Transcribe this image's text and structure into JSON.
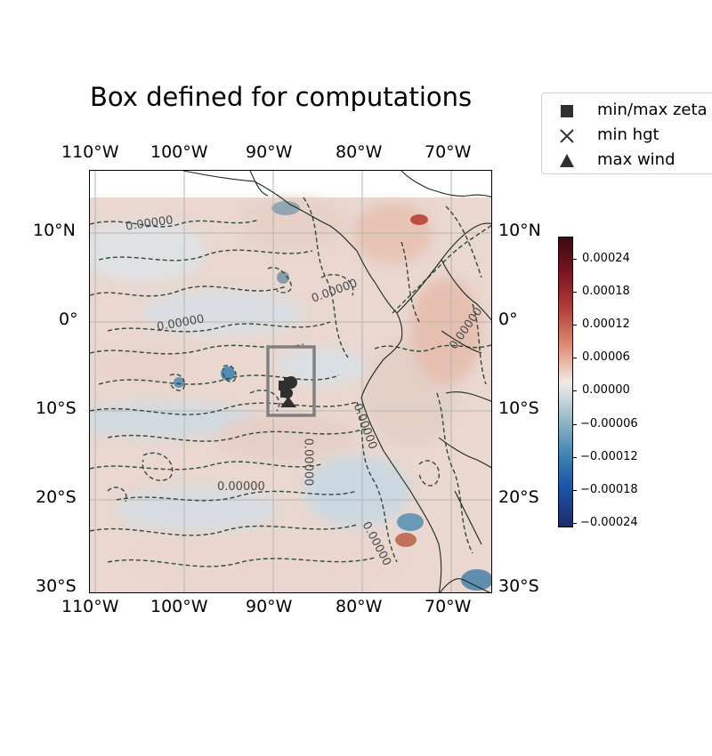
{
  "title": "Box defined for computations",
  "axes": {
    "top_lon_labels": [
      "110°W",
      "100°W",
      "90°W",
      "80°W",
      "70°W"
    ],
    "bottom_lon_labels": [
      "110°W",
      "100°W",
      "90°W",
      "80°W",
      "70°W"
    ],
    "left_lat_labels": [
      "10°N",
      "0°",
      "10°S",
      "20°S",
      "30°S"
    ],
    "right_lat_labels": [
      "10°N",
      "0°",
      "10°S",
      "20°S",
      "30°S"
    ]
  },
  "legend": [
    {
      "marker": "square-marker",
      "label": "min/max zeta"
    },
    {
      "marker": "x-marker",
      "label": "min hgt"
    },
    {
      "marker": "triangle-marker",
      "label": "max wind"
    }
  ],
  "colorbar": {
    "ticks": [
      "0.00024",
      "0.00018",
      "0.00012",
      "0.00006",
      "0.00000",
      "−0.00006",
      "−0.00012",
      "−0.00018",
      "−0.00024"
    ]
  },
  "contour_labels": [
    "0.00000",
    "0.00000",
    "0.00000",
    "0.00000",
    "0.00000",
    "0.00000",
    "0.00000",
    "0.00000"
  ],
  "colors": {
    "contour": "#2d4a3a",
    "coastline": "#1a2a1a",
    "box": "#808080",
    "markers": "#2f2f2f"
  },
  "map_extent": {
    "lon_min": -110,
    "lon_max": -65,
    "lat_min": -30,
    "lat_max": 17
  }
}
